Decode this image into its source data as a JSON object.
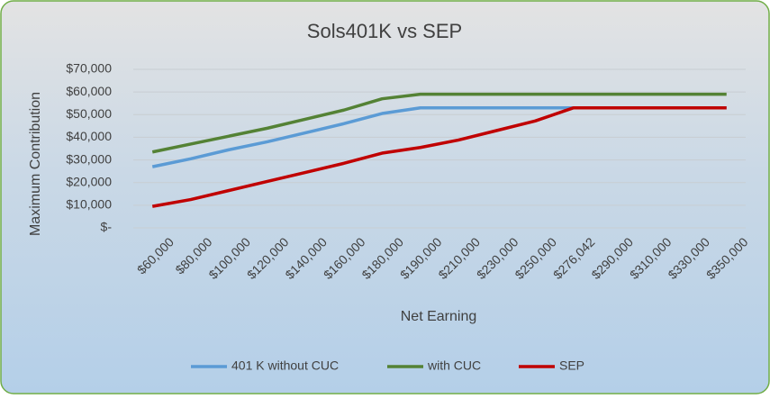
{
  "chart_data": {
    "type": "line",
    "title": "Sols401K vs SEP",
    "x_label": "Net Earning",
    "y_label": "Maximum Contribution",
    "categories": [
      "$60,000",
      "$80,000",
      "$100,000",
      "$120,000",
      "$140,000",
      "$160,000",
      "$180,000",
      "$190,000",
      "$210,000",
      "$230,000",
      "$250,000",
      "$276,042",
      "$290,000",
      "$310,000",
      "$330,000",
      "$350,000"
    ],
    "series": [
      {
        "name": "401 K without CUC",
        "color": "#5b9bd5",
        "values": [
          27000,
          30500,
          34500,
          38000,
          42000,
          46000,
          50500,
          53000,
          53000,
          53000,
          53000,
          53000,
          53000,
          53000,
          53000,
          53000
        ]
      },
      {
        "name": "with CUC",
        "color": "#548235",
        "values": [
          33500,
          37000,
          40500,
          44000,
          48000,
          52000,
          57000,
          59000,
          59000,
          59000,
          59000,
          59000,
          59000,
          59000,
          59000,
          59000
        ]
      },
      {
        "name": "SEP",
        "color": "#c00000",
        "values": [
          9500,
          12500,
          16500,
          20500,
          24500,
          28500,
          33000,
          35500,
          38800,
          43000,
          47200,
          53000,
          53000,
          53000,
          53000,
          53000
        ]
      }
    ],
    "ylim": [
      0,
      70000
    ],
    "yticks": [
      {
        "value": 0,
        "label": "$-"
      },
      {
        "value": 10000,
        "label": "$10,000"
      },
      {
        "value": 20000,
        "label": "$20,000"
      },
      {
        "value": 30000,
        "label": "$30,000"
      },
      {
        "value": 40000,
        "label": "$40,000"
      },
      {
        "value": 50000,
        "label": "$50,000"
      },
      {
        "value": 60000,
        "label": "$60,000"
      },
      {
        "value": 70000,
        "label": "$70,000"
      }
    ],
    "grid": true,
    "legend": "bottom"
  }
}
